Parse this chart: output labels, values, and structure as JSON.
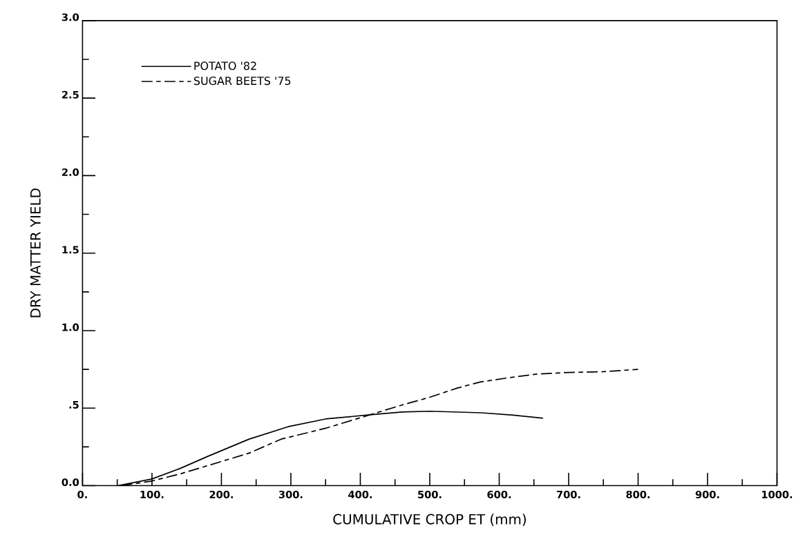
{
  "chart_data": {
    "type": "line",
    "xlabel": "CUMULATIVE CROP ET  (mm)",
    "ylabel": "DRY MATTER YIELD",
    "xlim": [
      0,
      1000
    ],
    "ylim": [
      0,
      3.0
    ],
    "xticks": [
      {
        "value": 0,
        "label": "0."
      },
      {
        "value": 100,
        "label": "100."
      },
      {
        "value": 200,
        "label": "200."
      },
      {
        "value": 300,
        "label": "300."
      },
      {
        "value": 400,
        "label": "400."
      },
      {
        "value": 500,
        "label": "500."
      },
      {
        "value": 600,
        "label": "600."
      },
      {
        "value": 700,
        "label": "700."
      },
      {
        "value": 800,
        "label": "800."
      },
      {
        "value": 900,
        "label": "900."
      },
      {
        "value": 1000,
        "label": "1000."
      }
    ],
    "yticks": [
      {
        "value": 0,
        "label": "0.0"
      },
      {
        "value": 0.5,
        "label": ".5"
      },
      {
        "value": 1.0,
        "label": "1.0"
      },
      {
        "value": 1.5,
        "label": "1.5"
      },
      {
        "value": 2.0,
        "label": "2.0"
      },
      {
        "value": 2.5,
        "label": "2.5"
      },
      {
        "value": 3.0,
        "label": "3.0"
      }
    ],
    "legend": "top left",
    "grid": false,
    "marker": "none",
    "series": [
      {
        "name": "POTATO '82",
        "color": "#000000",
        "line_style": "solid",
        "x": [
          51,
          100,
          140,
          181,
          240,
          296,
          350,
          414,
          460,
          500,
          574,
          620,
          663
        ],
        "values": [
          0,
          0.043,
          0.11,
          0.19,
          0.3,
          0.38,
          0.43,
          0.457,
          0.475,
          0.48,
          0.47,
          0.455,
          0.435
        ]
      },
      {
        "name": "SUGAR BEETS '75",
        "color": "#000000",
        "line_style": "dashed",
        "x": [
          56,
          100,
          140,
          181,
          240,
          286,
          350,
          414,
          460,
          500,
          540,
          574,
          620,
          655,
          700,
          750,
          800
        ],
        "values": [
          0,
          0.03,
          0.075,
          0.13,
          0.21,
          0.3,
          0.37,
          0.457,
          0.52,
          0.57,
          0.63,
          0.67,
          0.7,
          0.72,
          0.73,
          0.735,
          0.75
        ]
      }
    ]
  }
}
